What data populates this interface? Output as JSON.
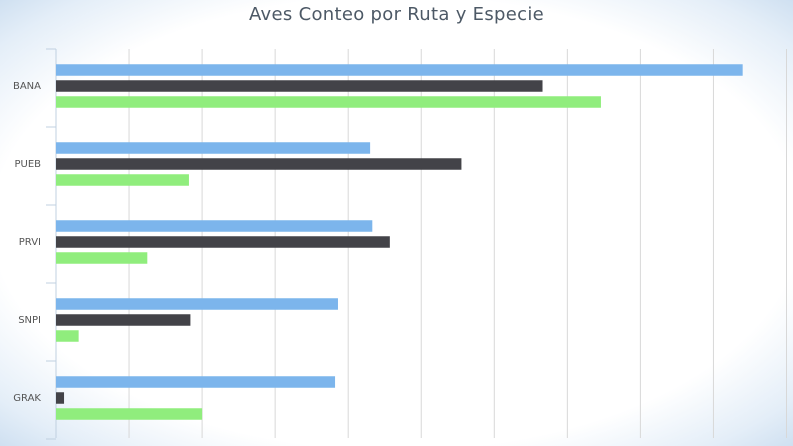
{
  "chart_data": {
    "type": "bar",
    "orientation": "horizontal",
    "title": "Aves Conteo por Ruta y Especie",
    "xlabel": "",
    "ylabel": "",
    "categories": [
      "BANA",
      "PUEB",
      "PRVI",
      "SNPI",
      "GRAK"
    ],
    "series": [
      {
        "values": [
          94,
          43,
          43.3,
          38.6,
          38.2
        ],
        "color": "#7cb5ec"
      },
      {
        "values": [
          66.6,
          55.5,
          45.7,
          18.4,
          1.1
        ],
        "color": "#434348"
      },
      {
        "values": [
          74.6,
          18.2,
          12.5,
          3.1,
          20
        ],
        "color": "#90ed7d"
      }
    ],
    "xlim": [
      0,
      100
    ],
    "grid": true,
    "legend": "none"
  }
}
